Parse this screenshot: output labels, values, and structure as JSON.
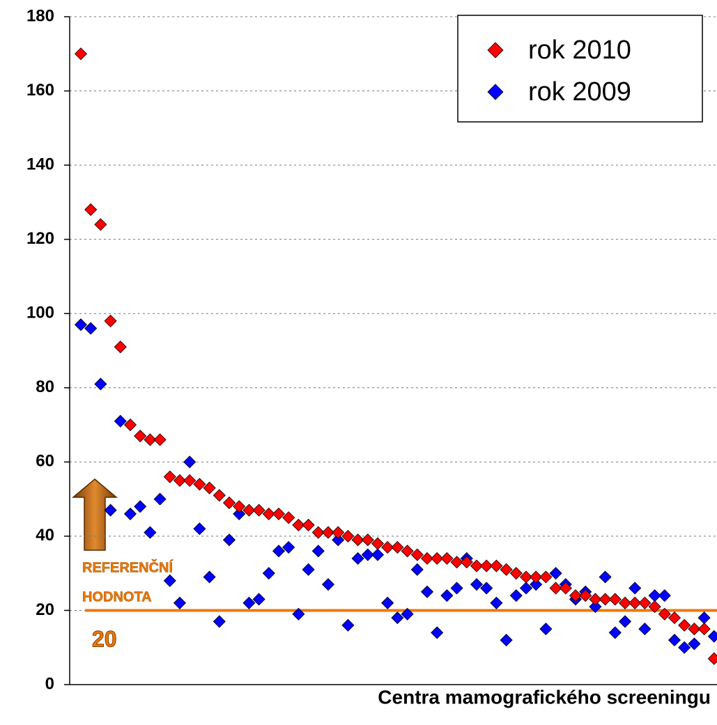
{
  "chart_data": {
    "type": "scatter",
    "x_label": "Centra mamografického screeningu",
    "categories": [
      null,
      null,
      null,
      null,
      null,
      null,
      null,
      null,
      null,
      null,
      null,
      null,
      null,
      null,
      null,
      null,
      null,
      null,
      null,
      null,
      null,
      null,
      null,
      null,
      null,
      null,
      null,
      null,
      null,
      null,
      null,
      null,
      null,
      null,
      null,
      null,
      null,
      null,
      null,
      null,
      null,
      null,
      null,
      null,
      null,
      null,
      null,
      null,
      null,
      null,
      null,
      null,
      null,
      null,
      null,
      null,
      null,
      null,
      null,
      null,
      null,
      null,
      null,
      null,
      null
    ],
    "series": [
      {
        "name": "rok 2010",
        "color": "#ff0000",
        "values": [
          170,
          128,
          124,
          98,
          91,
          70,
          67,
          66,
          66,
          56,
          55,
          55,
          54,
          53,
          51,
          49,
          48,
          47,
          47,
          46,
          46,
          45,
          43,
          43,
          41,
          41,
          41,
          40,
          39,
          39,
          38,
          37,
          37,
          36,
          35,
          34,
          34,
          34,
          33,
          33,
          32,
          32,
          32,
          31,
          30,
          29,
          29,
          29,
          26,
          26,
          24,
          24,
          23,
          23,
          23,
          22,
          22,
          22,
          21,
          19,
          18,
          16,
          15,
          15,
          7
        ]
      },
      {
        "name": "rok 2009",
        "color": "#0000ff",
        "values": [
          97,
          96,
          81,
          47,
          71,
          46,
          48,
          41,
          50,
          28,
          22,
          60,
          42,
          29,
          17,
          39,
          46,
          22,
          23,
          30,
          36,
          37,
          19,
          31,
          36,
          27,
          39,
          16,
          34,
          35,
          35,
          22,
          18,
          19,
          31,
          25,
          14,
          24,
          26,
          34,
          27,
          26,
          22,
          12,
          24,
          26,
          27,
          15,
          30,
          27,
          23,
          25,
          21,
          29,
          14,
          17,
          26,
          15,
          24,
          24,
          12,
          10,
          11,
          18,
          13
        ]
      }
    ],
    "ylim": [
      0,
      180
    ],
    "yticks": [
      0,
      20,
      40,
      60,
      80,
      100,
      120,
      140,
      160,
      180
    ],
    "grid": true,
    "legend": "top-right",
    "reference": {
      "value": 20,
      "label": "20",
      "color": "#f07800",
      "text": [
        "REFERENČNÍ",
        "HODNOTA"
      ]
    }
  }
}
